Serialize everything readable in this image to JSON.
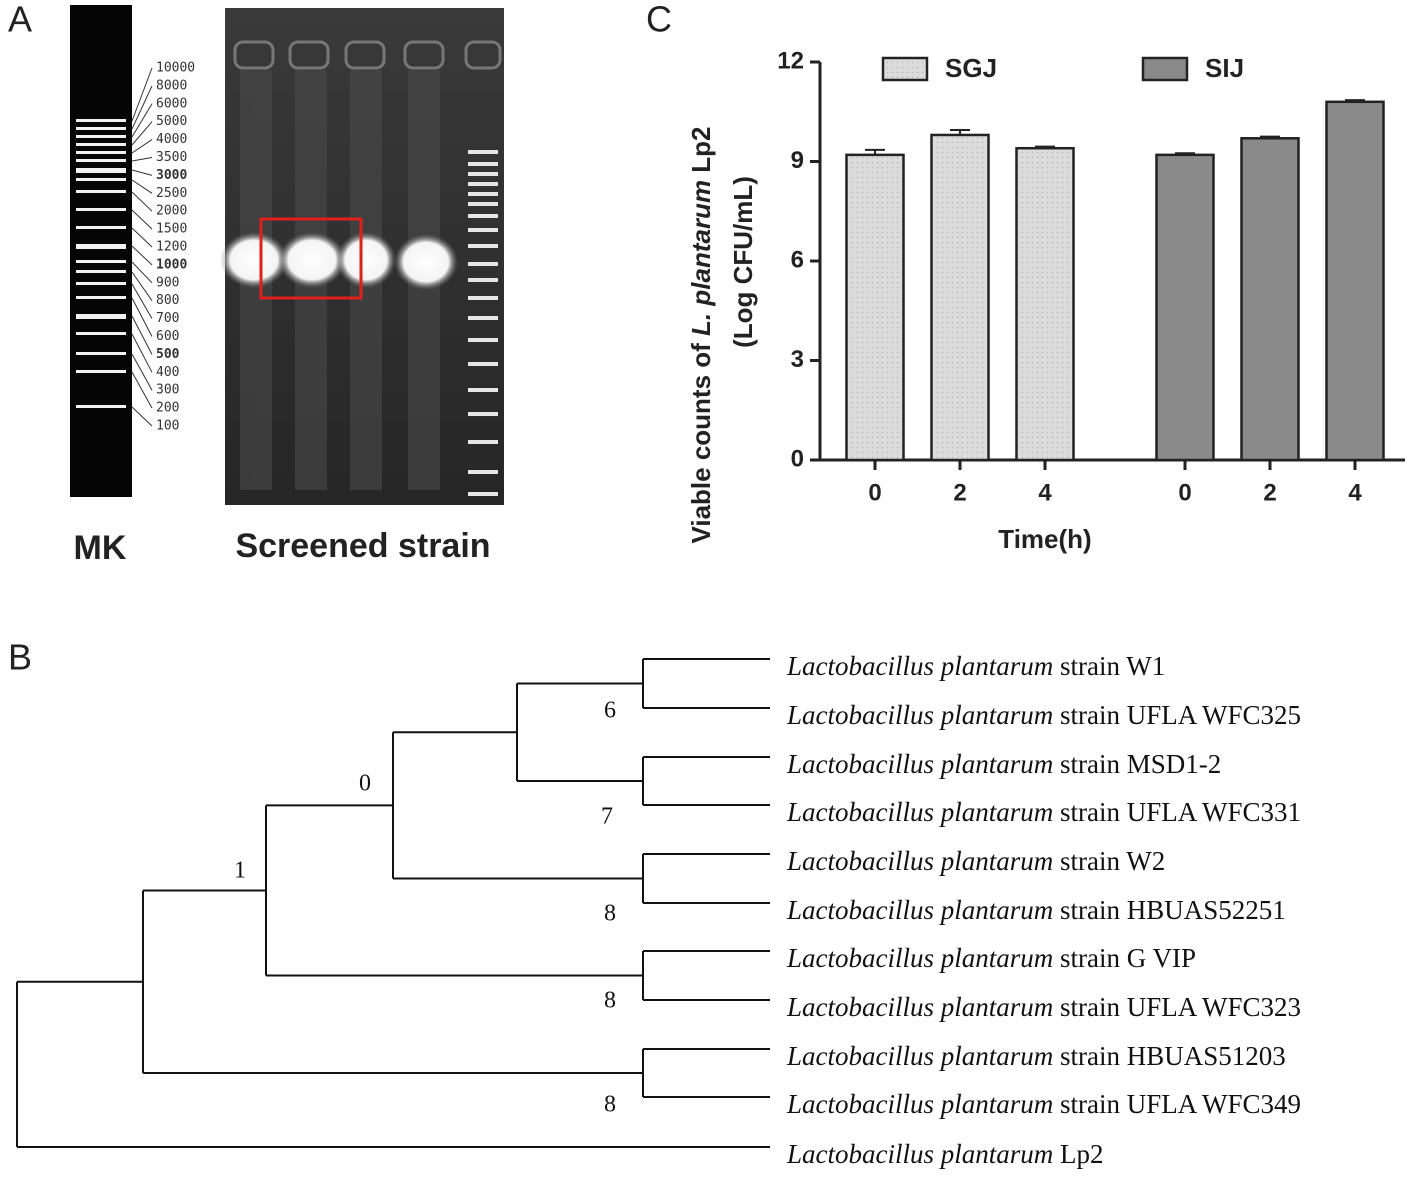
{
  "panels": {
    "a": "A",
    "b": "B",
    "c": "C"
  },
  "gel": {
    "marker_name": "MK",
    "sample_name": "Screened strain",
    "marker_labels": [
      {
        "text": "10000"
      },
      {
        "text": "8000"
      },
      {
        "text": "6000"
      },
      {
        "text": "5000"
      },
      {
        "text": "4000"
      },
      {
        "text": "3500"
      },
      {
        "text": "3000",
        "bold": true
      },
      {
        "text": "2500"
      },
      {
        "text": "2000"
      },
      {
        "text": "1500"
      },
      {
        "text": "1200"
      },
      {
        "text": "1000",
        "bold": true
      },
      {
        "text": "900"
      },
      {
        "text": "800"
      },
      {
        "text": "700"
      },
      {
        "text": "600"
      },
      {
        "text": "500",
        "bold": true
      },
      {
        "text": "400"
      },
      {
        "text": "300"
      },
      {
        "text": "200"
      },
      {
        "text": "100"
      }
    ]
  },
  "chart_data": {
    "type": "bar",
    "ylabel": {
      "line1": [
        "Viable counts of ",
        "L. plantarum",
        " Lp2"
      ],
      "line2": "(Log CFU/mL)"
    },
    "xlabel": "Time(h)",
    "categories": [
      "0",
      "2",
      "4"
    ],
    "series": [
      {
        "name": "SGJ",
        "color": "#dcdcdc",
        "values": [
          9.2,
          9.8,
          9.4
        ],
        "errors": [
          0.15,
          0.15,
          0.05
        ]
      },
      {
        "name": "SIJ",
        "color": "#8a8a8a",
        "values": [
          9.2,
          9.7,
          10.8
        ],
        "errors": [
          0.05,
          0.05,
          0.05
        ]
      }
    ],
    "ylim": [
      0,
      12
    ],
    "yticks": [
      0,
      3,
      6,
      9,
      12
    ],
    "grid": false
  },
  "tree": {
    "leaves": [
      {
        "genus": "Lactobacillus plantarum",
        "rest": " strain W1"
      },
      {
        "genus": "Lactobacillus plantarum",
        "rest": " strain UFLA WFC325"
      },
      {
        "genus": "Lactobacillus plantarum",
        "rest": " strain MSD1-2"
      },
      {
        "genus": "Lactobacillus plantarum",
        "rest": " strain UFLA WFC331"
      },
      {
        "genus": "Lactobacillus plantarum",
        "rest": " strain W2"
      },
      {
        "genus": "Lactobacillus plantarum",
        "rest": " strain HBUAS52251"
      },
      {
        "genus": "Lactobacillus plantarum",
        "rest": " strain G VIP"
      },
      {
        "genus": "Lactobacillus plantarum",
        "rest": " strain UFLA WFC323"
      },
      {
        "genus": "Lactobacillus plantarum",
        "rest": " strain HBUAS51203"
      },
      {
        "genus": "Lactobacillus plantarum",
        "rest": " strain UFLA WFC349"
      },
      {
        "genus": "Lactobacillus plantarum",
        "rest": " Lp2"
      }
    ],
    "node_labels": [
      "6",
      "7",
      "8",
      "0",
      "8",
      "1",
      "8"
    ]
  }
}
